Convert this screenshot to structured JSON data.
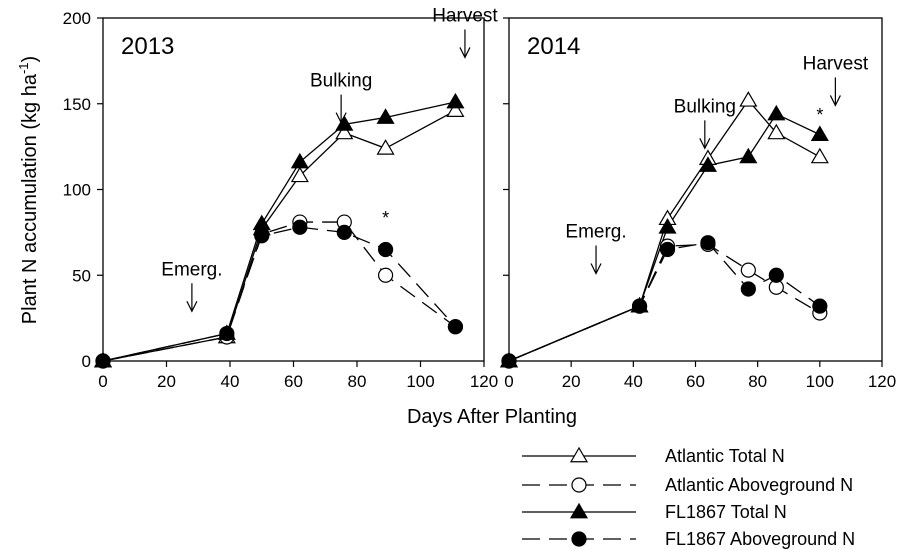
{
  "chart_data": {
    "type": "line",
    "ylabel": "Plant N accumulation (kg ha",
    "ylabel_sup": "-1",
    "ylabel_close": ")",
    "xlabel": "Days After Planting",
    "xlim": [
      0,
      120
    ],
    "ylim": [
      0,
      200
    ],
    "xticks": [
      "0",
      "20",
      "40",
      "60",
      "80",
      "100",
      "120"
    ],
    "yticks": [
      "0",
      "50",
      "100",
      "150",
      "200"
    ],
    "legend_position": "bottom-right",
    "grid": false,
    "series_styles": [
      {
        "marker": "triangle",
        "fill": "#ffffff",
        "dash": "solid"
      },
      {
        "marker": "circle",
        "fill": "#ffffff",
        "dash": "long-dash"
      },
      {
        "marker": "triangle",
        "fill": "#000000",
        "dash": "solid"
      },
      {
        "marker": "circle",
        "fill": "#000000",
        "dash": "long-dash"
      }
    ],
    "legend": [
      "Atlantic Total N",
      "Atlantic Aboveground N",
      "FL1867 Total N",
      "FL1867 Aboveground N"
    ],
    "panels": [
      {
        "title": "2013",
        "series": [
          {
            "name": "Atlantic Total N",
            "x": [
              0,
              39,
              50,
              62,
              76,
              89,
              111
            ],
            "y": [
              0,
              14,
              77,
              108,
              133,
              124,
              146
            ]
          },
          {
            "name": "Atlantic Aboveground N",
            "x": [
              0,
              39,
              50,
              62,
              76,
              89,
              111
            ],
            "y": [
              0,
              14,
              74,
              81,
              81,
              50,
              20
            ]
          },
          {
            "name": "FL1867 Total N",
            "x": [
              0,
              39,
              50,
              62,
              76,
              89,
              111
            ],
            "y": [
              0,
              16,
              80,
              116,
              138,
              142,
              151
            ]
          },
          {
            "name": "FL1867 Aboveground N",
            "x": [
              0,
              39,
              50,
              62,
              76,
              89,
              111
            ],
            "y": [
              0,
              16,
              73,
              78,
              75,
              65,
              20
            ]
          }
        ],
        "annotations": [
          {
            "text": "Emerg.",
            "x": 28,
            "y": 50
          },
          {
            "text": "Bulking",
            "x": 75,
            "y": 160
          },
          {
            "text": "Harvest",
            "x": 114,
            "y": 198
          }
        ],
        "significance": [
          {
            "text": "*",
            "x": 89,
            "y": 80
          }
        ]
      },
      {
        "title": "2014",
        "series": [
          {
            "name": "Atlantic Total N",
            "x": [
              0,
              42,
              51,
              64,
              77,
              86,
              100
            ],
            "y": [
              0,
              32,
              83,
              118,
              152,
              133,
              119
            ]
          },
          {
            "name": "Atlantic Aboveground N",
            "x": [
              0,
              42,
              51,
              64,
              77,
              86,
              100
            ],
            "y": [
              0,
              32,
              67,
              68,
              53,
              43,
              28
            ]
          },
          {
            "name": "FL1867 Total N",
            "x": [
              0,
              42,
              51,
              64,
              77,
              86,
              100
            ],
            "y": [
              0,
              32,
              78,
              114,
              119,
              144,
              132
            ]
          },
          {
            "name": "FL1867 Aboveground N",
            "x": [
              0,
              42,
              51,
              64,
              77,
              86,
              100
            ],
            "y": [
              0,
              32,
              65,
              69,
              42,
              50,
              32
            ]
          }
        ],
        "annotations": [
          {
            "text": "Emerg.",
            "x": 28,
            "y": 72
          },
          {
            "text": "Bulking",
            "x": 63,
            "y": 145
          },
          {
            "text": "Harvest",
            "x": 105,
            "y": 170
          }
        ],
        "significance": [
          {
            "text": "*",
            "x": 100,
            "y": 140
          }
        ]
      }
    ]
  }
}
